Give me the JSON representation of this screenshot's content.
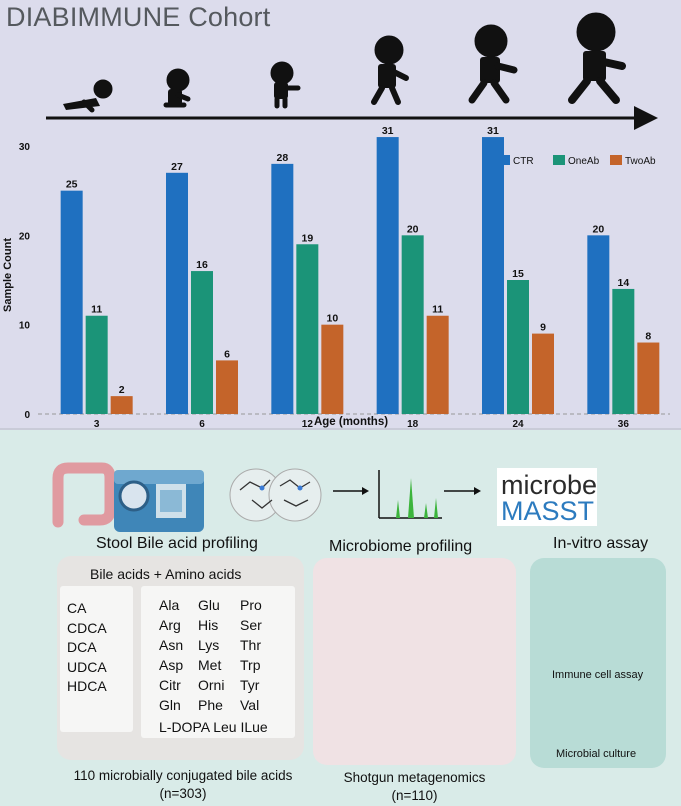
{
  "header": {
    "title": "DIABIMMUNE Cohort"
  },
  "chart_data": {
    "type": "bar",
    "categories": [
      "3",
      "6",
      "12",
      "18",
      "24",
      "36"
    ],
    "series": [
      {
        "name": "CTR",
        "values": [
          25,
          27,
          28,
          31,
          31,
          20
        ]
      },
      {
        "name": "OneAb",
        "values": [
          11,
          16,
          19,
          20,
          15,
          14
        ]
      },
      {
        "name": "TwoAb",
        "values": [
          2,
          6,
          10,
          11,
          9,
          8
        ]
      }
    ],
    "xlabel": "Age (months)",
    "ylabel": "Sample Count",
    "ylim": [
      0,
      30
    ],
    "yticks": [
      0,
      10,
      20,
      30
    ],
    "legend_position": "top-right",
    "colors": [
      "#1f70c0",
      "#1b9478",
      "#c4642a"
    ]
  },
  "workflow": {
    "stool": {
      "title": "Stool Bile acid profiling",
      "header": "Bile acids  + Amino acids",
      "bile_acids": [
        "CA",
        "CDCA",
        "DCA",
        "UDCA",
        "HDCA"
      ],
      "amino_col1": [
        "Ala",
        "Arg",
        "Asn",
        "Asp",
        "Citr",
        "Gln"
      ],
      "amino_col2": [
        "Glu",
        "His",
        "Lys",
        "Met",
        "Orni",
        "Phe"
      ],
      "amino_col3": [
        "Pro",
        "Ser",
        "Thr",
        "Trp",
        "Tyr",
        "Val"
      ],
      "amino_last": "L-DOPA Leu ILue",
      "caption_line1": "110 microbially conjugated bile acids",
      "caption_line2": "(n=303)"
    },
    "microbiome": {
      "title": "Microbiome profiling",
      "caption_line1": "Shotgun metagenomics",
      "caption_line2": "(n=110)"
    },
    "invitro": {
      "title": "In-vitro assay",
      "immune_label": "Immune cell assay",
      "microbial_label": "Microbial culture"
    },
    "logo": {
      "line1": "microbe",
      "line2": "MASST"
    }
  }
}
